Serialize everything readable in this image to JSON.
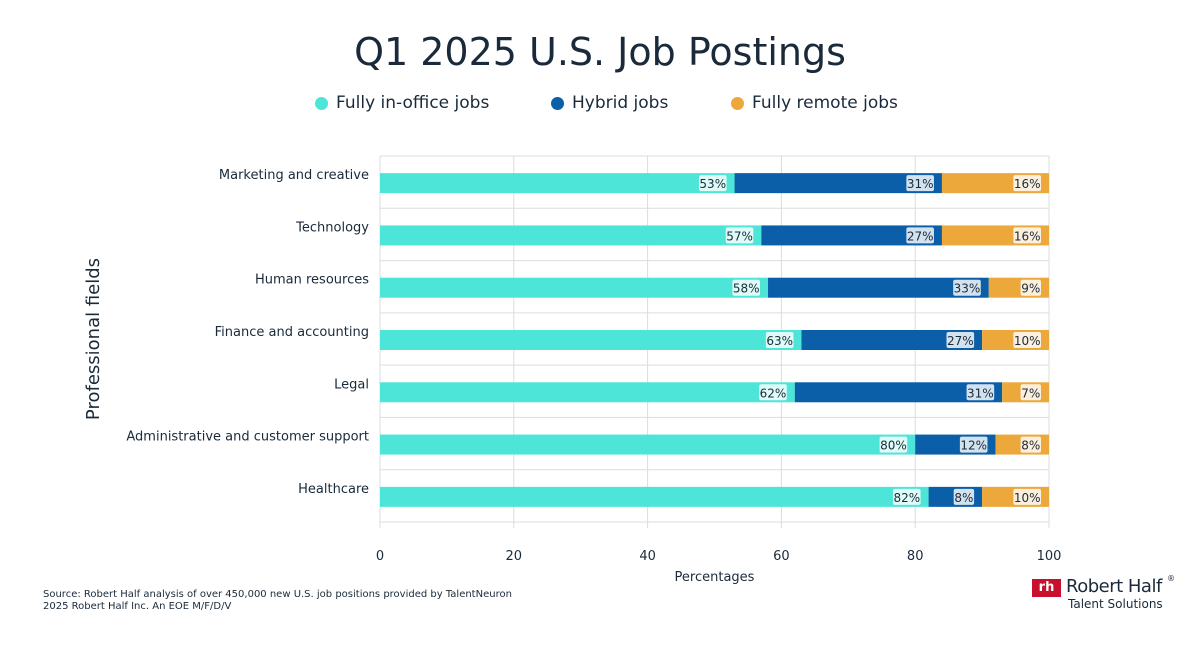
{
  "chart_data": {
    "type": "bar",
    "orientation": "horizontal",
    "stacked": true,
    "title": "Q1 2025 U.S. Job Postings",
    "xlabel": "Percentages",
    "ylabel": "Professional fields",
    "xlim": [
      0,
      100
    ],
    "xticks": [
      "0",
      "20",
      "40",
      "60",
      "80",
      "100"
    ],
    "grid": true,
    "legend_position": "top",
    "categories": [
      "Marketing and creative",
      "Technology",
      "Human resources",
      "Finance and accounting",
      "Legal",
      "Administrative and customer support",
      "Healthcare"
    ],
    "series": [
      {
        "name": "Fully in-office jobs",
        "color": "#4de5d8",
        "values": [
          53,
          57,
          58,
          63,
          62,
          80,
          82
        ]
      },
      {
        "name": "Hybrid jobs",
        "color": "#0b5ea8",
        "values": [
          31,
          27,
          33,
          27,
          31,
          12,
          8
        ]
      },
      {
        "name": "Fully remote jobs",
        "color": "#eda83c",
        "values": [
          16,
          16,
          9,
          10,
          7,
          8,
          10
        ]
      }
    ],
    "data_labels": [
      [
        "53%",
        "31%",
        "16%"
      ],
      [
        "57%",
        "27%",
        "16%"
      ],
      [
        "58%",
        "33%",
        "9%"
      ],
      [
        "63%",
        "27%",
        "10%"
      ],
      [
        "62%",
        "31%",
        "7%"
      ],
      [
        "80%",
        "12%",
        "8%"
      ],
      [
        "82%",
        "8%",
        "10%"
      ]
    ]
  },
  "footer": {
    "source_line1": "Source: Robert Half analysis of over 450,000 new U.S. job positions provided by TalentNeuron",
    "source_line2": "2025 Robert Half Inc. An EOE M/F/D/V"
  },
  "brand": {
    "mark": "rh",
    "name": "Robert Half",
    "registered": "®",
    "sub": "Talent Solutions"
  }
}
